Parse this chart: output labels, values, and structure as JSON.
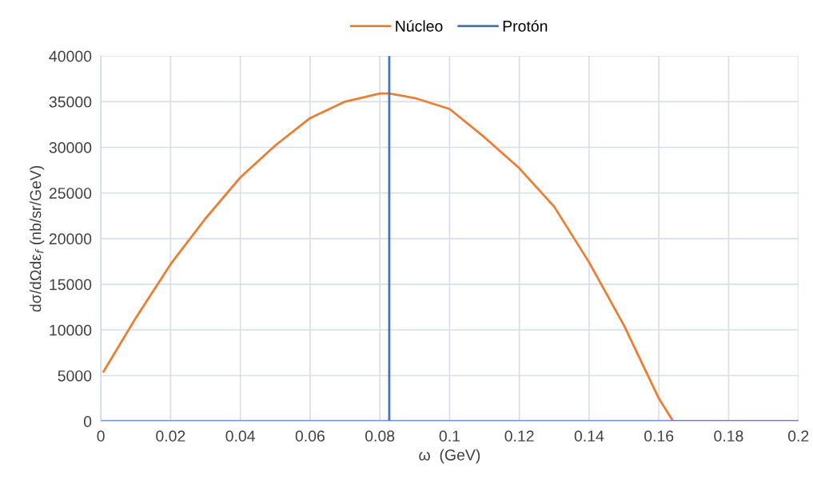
{
  "chart_data": {
    "type": "line",
    "xlabel": "ω  (GeV)",
    "ylabel": "dσ/dΩdε$_{f}$ (nb/sr/GeV)",
    "xlim": [
      0,
      0.2
    ],
    "xticks": [
      0,
      0.02,
      0.04,
      0.06,
      0.08,
      0.1,
      0.12,
      0.14,
      0.16,
      0.18,
      0.2
    ],
    "ylim": [
      0,
      40000
    ],
    "yticks": [
      0,
      5000,
      10000,
      15000,
      20000,
      25000,
      30000,
      35000,
      40000
    ],
    "grid": true,
    "legend": "top",
    "marker": "none",
    "line_style": "solid",
    "series": [
      {
        "name": "Núcleo",
        "color": "#ed7d31",
        "x": [
          0.0008,
          0.01,
          0.02,
          0.03,
          0.04,
          0.05,
          0.06,
          0.07,
          0.08,
          0.0827,
          0.09,
          0.1,
          0.11,
          0.12,
          0.13,
          0.14,
          0.15,
          0.16,
          0.1641,
          0.2
        ],
        "values": [
          5450,
          11300,
          17200,
          22200,
          26700,
          30200,
          33200,
          35000,
          35900,
          35900,
          35400,
          34200,
          31100,
          27700,
          23500,
          17400,
          10500,
          2500,
          0,
          0
        ]
      },
      {
        "name": "Protón",
        "color": "#4472c4",
        "x": [
          0,
          0.0827,
          0.0827,
          0.0827,
          0.2
        ],
        "values": [
          0,
          0,
          40000,
          0,
          0
        ]
      }
    ]
  }
}
